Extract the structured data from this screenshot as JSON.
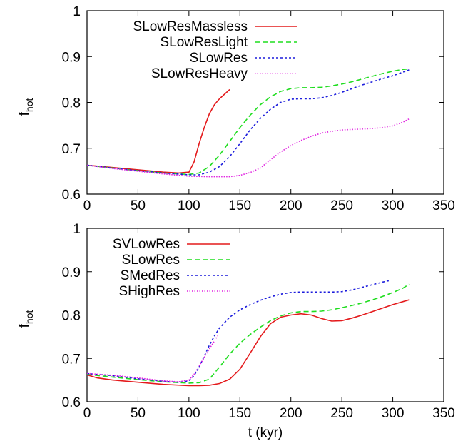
{
  "chart_data": [
    {
      "type": "line",
      "title": "",
      "xlabel": "",
      "ylabel_main": "f",
      "ylabel_sub": "hot",
      "xlim": [
        0,
        350
      ],
      "ylim": [
        0.6,
        1.0
      ],
      "xticks": [
        "0",
        "50",
        "100",
        "150",
        "200",
        "250",
        "300",
        "350"
      ],
      "yticks": [
        "0.6",
        "0.7",
        "0.8",
        "0.9",
        "1"
      ],
      "legend_position": "top-left",
      "series": [
        {
          "name": "SLowResMassless",
          "color": "#e41a1c",
          "dash": "solid",
          "x": [
            0,
            25,
            50,
            75,
            90,
            100,
            105,
            110,
            115,
            120,
            125,
            130,
            135,
            140
          ],
          "y": [
            0.663,
            0.658,
            0.653,
            0.648,
            0.646,
            0.648,
            0.67,
            0.71,
            0.745,
            0.775,
            0.795,
            0.808,
            0.818,
            0.828
          ]
        },
        {
          "name": "SLowResLight",
          "color": "#1fdd1f",
          "dash": "7,4",
          "x": [
            0,
            25,
            50,
            75,
            100,
            110,
            120,
            130,
            140,
            150,
            160,
            170,
            180,
            190,
            200,
            210,
            220,
            230,
            240,
            250,
            260,
            270,
            280,
            290,
            300,
            310,
            316
          ],
          "y": [
            0.663,
            0.657,
            0.651,
            0.646,
            0.643,
            0.646,
            0.66,
            0.685,
            0.715,
            0.745,
            0.772,
            0.795,
            0.812,
            0.824,
            0.83,
            0.832,
            0.832,
            0.833,
            0.836,
            0.84,
            0.845,
            0.851,
            0.857,
            0.863,
            0.868,
            0.872,
            0.873
          ]
        },
        {
          "name": "SLowRes",
          "color": "#1c1cdc",
          "dash": "3,3",
          "x": [
            0,
            25,
            50,
            75,
            100,
            110,
            120,
            130,
            140,
            150,
            160,
            170,
            180,
            190,
            200,
            210,
            220,
            230,
            240,
            250,
            260,
            270,
            280,
            290,
            300,
            310,
            316
          ],
          "y": [
            0.663,
            0.657,
            0.651,
            0.646,
            0.642,
            0.642,
            0.648,
            0.66,
            0.682,
            0.71,
            0.74,
            0.765,
            0.785,
            0.8,
            0.807,
            0.808,
            0.808,
            0.81,
            0.815,
            0.822,
            0.83,
            0.838,
            0.845,
            0.852,
            0.858,
            0.866,
            0.871
          ]
        },
        {
          "name": "SLowResHeavy",
          "color": "#e020e0",
          "dash": "1.5,2",
          "x": [
            0,
            25,
            50,
            75,
            100,
            120,
            140,
            150,
            160,
            170,
            180,
            190,
            200,
            210,
            220,
            230,
            240,
            250,
            260,
            270,
            280,
            290,
            300,
            310,
            316
          ],
          "y": [
            0.663,
            0.656,
            0.65,
            0.644,
            0.639,
            0.638,
            0.638,
            0.641,
            0.647,
            0.657,
            0.675,
            0.692,
            0.706,
            0.717,
            0.726,
            0.733,
            0.737,
            0.74,
            0.741,
            0.742,
            0.743,
            0.745,
            0.749,
            0.757,
            0.764
          ]
        }
      ]
    },
    {
      "type": "line",
      "title": "",
      "xlabel": "t (kyr)",
      "ylabel_main": "f",
      "ylabel_sub": "hot",
      "xlim": [
        0,
        350
      ],
      "ylim": [
        0.6,
        1.0
      ],
      "xticks": [
        "0",
        "50",
        "100",
        "150",
        "200",
        "250",
        "300",
        "350"
      ],
      "yticks": [
        "0.6",
        "0.7",
        "0.8",
        "0.9",
        "1"
      ],
      "legend_position": "top-left",
      "series": [
        {
          "name": "SVLowRes",
          "color": "#e41a1c",
          "dash": "solid",
          "x": [
            0,
            10,
            25,
            50,
            75,
            100,
            110,
            120,
            130,
            140,
            150,
            160,
            170,
            180,
            190,
            200,
            210,
            220,
            230,
            240,
            250,
            260,
            270,
            280,
            290,
            300,
            310,
            316
          ],
          "y": [
            0.662,
            0.655,
            0.65,
            0.645,
            0.64,
            0.637,
            0.637,
            0.638,
            0.642,
            0.652,
            0.675,
            0.712,
            0.75,
            0.78,
            0.795,
            0.8,
            0.803,
            0.8,
            0.792,
            0.786,
            0.787,
            0.793,
            0.8,
            0.808,
            0.816,
            0.824,
            0.831,
            0.835
          ]
        },
        {
          "name": "SLowRes",
          "color": "#1fdd1f",
          "dash": "7,4",
          "x": [
            0,
            25,
            50,
            75,
            100,
            110,
            120,
            130,
            140,
            150,
            160,
            170,
            180,
            190,
            200,
            210,
            220,
            230,
            240,
            250,
            260,
            270,
            280,
            290,
            300,
            310,
            316
          ],
          "y": [
            0.663,
            0.657,
            0.651,
            0.646,
            0.643,
            0.644,
            0.652,
            0.68,
            0.71,
            0.735,
            0.755,
            0.772,
            0.787,
            0.798,
            0.805,
            0.808,
            0.808,
            0.809,
            0.812,
            0.817,
            0.822,
            0.828,
            0.835,
            0.843,
            0.852,
            0.862,
            0.871
          ]
        },
        {
          "name": "SMedRes",
          "color": "#1c1cdc",
          "dash": "3,3",
          "x": [
            0,
            25,
            50,
            75,
            90,
            100,
            105,
            110,
            115,
            120,
            125,
            130,
            140,
            150,
            160,
            170,
            180,
            190,
            200,
            210,
            220,
            230,
            240,
            250,
            260,
            270,
            280,
            290,
            296
          ],
          "y": [
            0.665,
            0.66,
            0.653,
            0.647,
            0.645,
            0.648,
            0.66,
            0.68,
            0.705,
            0.73,
            0.752,
            0.77,
            0.795,
            0.812,
            0.824,
            0.834,
            0.842,
            0.848,
            0.852,
            0.853,
            0.853,
            0.853,
            0.853,
            0.854,
            0.858,
            0.864,
            0.87,
            0.876,
            0.879
          ]
        },
        {
          "name": "SHighRes",
          "color": "#e020e0",
          "dash": "1.5,2",
          "x": [
            0,
            25,
            50,
            75,
            90,
            100,
            105,
            110,
            115,
            120,
            125,
            128
          ],
          "y": [
            0.665,
            0.661,
            0.655,
            0.648,
            0.646,
            0.65,
            0.663,
            0.682,
            0.702,
            0.722,
            0.74,
            0.752
          ]
        }
      ]
    }
  ]
}
